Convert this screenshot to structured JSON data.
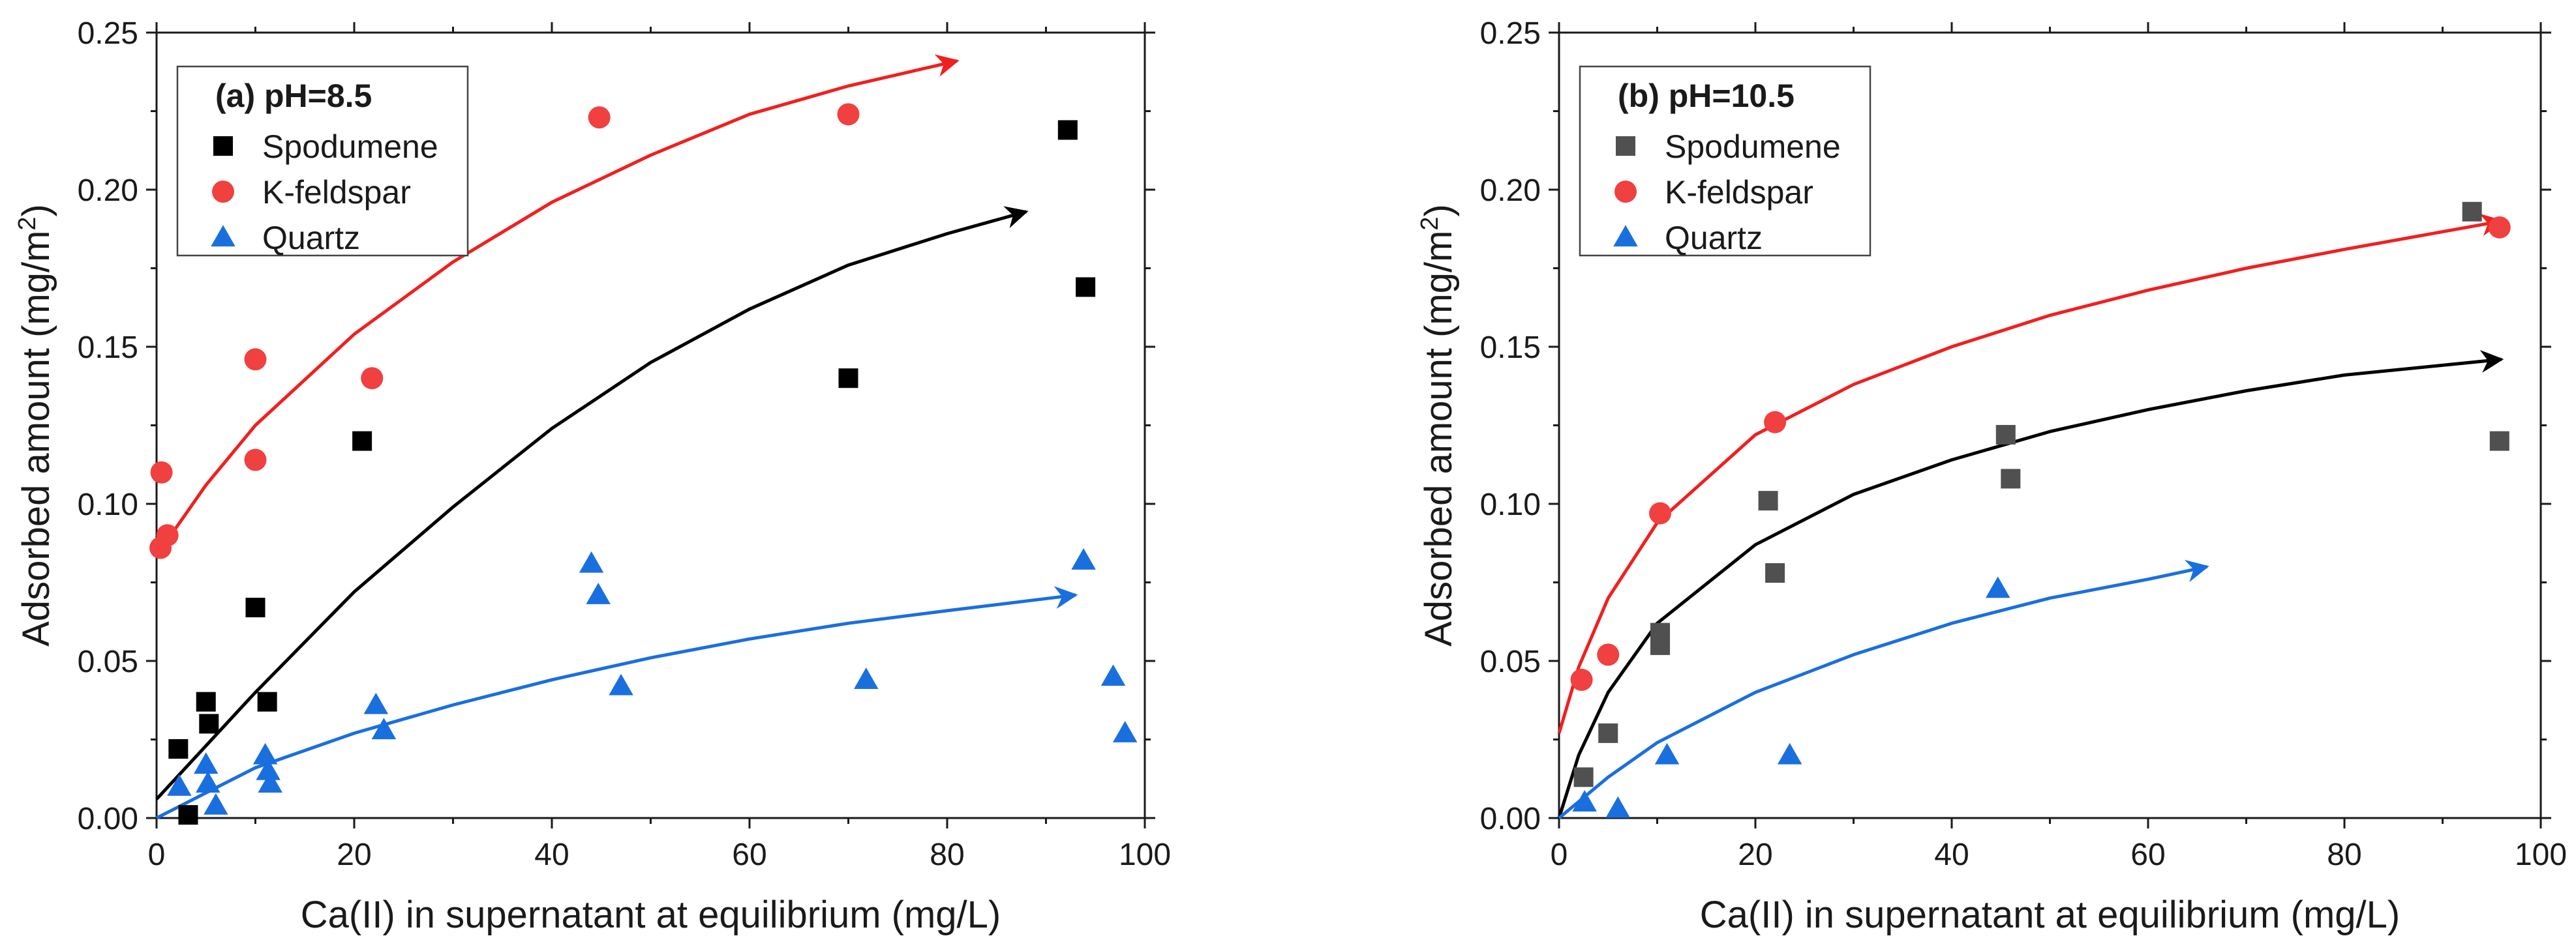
{
  "chart_data": [
    {
      "type": "scatter",
      "panel_title": "(a) pH=8.5",
      "xlabel": "Ca(II) in supernatant at equilibrium (mg/L)",
      "ylabel": "Adsorbed amount (mg/m",
      "ylabel_sup": "2",
      "ylabel_close": ")",
      "xlim": [
        0,
        100
      ],
      "ylim": [
        0,
        0.25
      ],
      "xticks": [
        "0",
        "20",
        "40",
        "60",
        "80",
        "100"
      ],
      "yticks": [
        "0.00",
        "0.05",
        "0.10",
        "0.15",
        "0.20",
        "0.25"
      ],
      "legend_position": "top-left",
      "series": [
        {
          "name": "Spodumene",
          "marker": "square",
          "color": "#000000",
          "points": [
            [
              2.2,
              0.022
            ],
            [
              3.2,
              0.001
            ],
            [
              5.0,
              0.037
            ],
            [
              5.3,
              0.03
            ],
            [
              10.0,
              0.067
            ],
            [
              11.2,
              0.037
            ],
            [
              20.8,
              0.12
            ],
            [
              70.0,
              0.14
            ],
            [
              92.2,
              0.219
            ],
            [
              94.0,
              0.169
            ]
          ],
          "fit": [
            [
              0,
              0.006
            ],
            [
              10,
              0.04
            ],
            [
              20,
              0.072
            ],
            [
              30,
              0.099
            ],
            [
              40,
              0.124
            ],
            [
              50,
              0.145
            ],
            [
              60,
              0.162
            ],
            [
              70,
              0.176
            ],
            [
              80,
              0.186
            ],
            [
              88,
              0.193
            ]
          ]
        },
        {
          "name": "K-feldspar",
          "marker": "circle",
          "color": "#f04040",
          "points": [
            [
              0.4,
              0.086
            ],
            [
              0.5,
              0.11
            ],
            [
              1.1,
              0.09
            ],
            [
              10.0,
              0.146
            ],
            [
              10.0,
              0.114
            ],
            [
              21.8,
              0.14
            ],
            [
              44.8,
              0.223
            ],
            [
              70.0,
              0.224
            ]
          ],
          "fit": [
            [
              1,
              0.088
            ],
            [
              5,
              0.106
            ],
            [
              10,
              0.125
            ],
            [
              20,
              0.154
            ],
            [
              30,
              0.177
            ],
            [
              40,
              0.196
            ],
            [
              50,
              0.211
            ],
            [
              60,
              0.224
            ],
            [
              70,
              0.233
            ],
            [
              81,
              0.241
            ]
          ]
        },
        {
          "name": "Quartz",
          "marker": "triangle",
          "color": "#1a6fdf",
          "points": [
            [
              2.3,
              0.01
            ],
            [
              5.0,
              0.017
            ],
            [
              5.2,
              0.011
            ],
            [
              6.0,
              0.004
            ],
            [
              11.0,
              0.02
            ],
            [
              11.3,
              0.015
            ],
            [
              11.5,
              0.011
            ],
            [
              22.2,
              0.036
            ],
            [
              23.0,
              0.028
            ],
            [
              44.0,
              0.081
            ],
            [
              44.7,
              0.071
            ],
            [
              47.0,
              0.042
            ],
            [
              71.8,
              0.044
            ],
            [
              93.8,
              0.082
            ],
            [
              96.8,
              0.045
            ],
            [
              98.0,
              0.027
            ]
          ],
          "fit": [
            [
              0,
              0.0
            ],
            [
              5,
              0.008
            ],
            [
              10,
              0.016
            ],
            [
              20,
              0.027
            ],
            [
              30,
              0.036
            ],
            [
              40,
              0.044
            ],
            [
              50,
              0.051
            ],
            [
              60,
              0.057
            ],
            [
              70,
              0.062
            ],
            [
              80,
              0.066
            ],
            [
              93,
              0.071
            ]
          ]
        }
      ]
    },
    {
      "type": "scatter",
      "panel_title": "(b) pH=10.5",
      "xlabel": "Ca(II) in supernatant at equilibrium (mg/L)",
      "ylabel": "Adsorbed amount (mg/m",
      "ylabel_sup": "2",
      "ylabel_close": ")",
      "xlim": [
        0,
        100
      ],
      "ylim": [
        0,
        0.25
      ],
      "xticks": [
        "0",
        "20",
        "40",
        "60",
        "80",
        "100"
      ],
      "yticks": [
        "0.00",
        "0.05",
        "0.10",
        "0.15",
        "0.20",
        "0.25"
      ],
      "legend_position": "top-left",
      "series": [
        {
          "name": "Spodumene",
          "marker": "square",
          "color": "#505050",
          "points": [
            [
              2.5,
              0.013
            ],
            [
              5.0,
              0.027
            ],
            [
              10.3,
              0.059
            ],
            [
              10.3,
              0.055
            ],
            [
              21.3,
              0.101
            ],
            [
              22.0,
              0.078
            ],
            [
              45.5,
              0.122
            ],
            [
              46.0,
              0.108
            ],
            [
              93.0,
              0.193
            ],
            [
              95.8,
              0.12
            ]
          ],
          "fit": [
            [
              0,
              0.0
            ],
            [
              2,
              0.02
            ],
            [
              5,
              0.04
            ],
            [
              10,
              0.062
            ],
            [
              20,
              0.087
            ],
            [
              30,
              0.103
            ],
            [
              40,
              0.114
            ],
            [
              50,
              0.123
            ],
            [
              60,
              0.13
            ],
            [
              70,
              0.136
            ],
            [
              80,
              0.141
            ],
            [
              96,
              0.146
            ]
          ]
        },
        {
          "name": "K-feldspar",
          "marker": "circle",
          "color": "#f04040",
          "points": [
            [
              2.3,
              0.044
            ],
            [
              5.0,
              0.052
            ],
            [
              10.3,
              0.097
            ],
            [
              22.0,
              0.126
            ],
            [
              95.8,
              0.188
            ]
          ],
          "fit": [
            [
              0,
              0.027
            ],
            [
              2,
              0.048
            ],
            [
              5,
              0.07
            ],
            [
              10,
              0.094
            ],
            [
              20,
              0.122
            ],
            [
              30,
              0.138
            ],
            [
              40,
              0.15
            ],
            [
              50,
              0.16
            ],
            [
              60,
              0.168
            ],
            [
              70,
              0.175
            ],
            [
              80,
              0.181
            ],
            [
              96,
              0.19
            ]
          ]
        },
        {
          "name": "Quartz",
          "marker": "triangle",
          "color": "#1a6fdf",
          "points": [
            [
              2.6,
              0.005
            ],
            [
              6.0,
              0.003
            ],
            [
              11.0,
              0.02
            ],
            [
              23.5,
              0.02
            ],
            [
              44.7,
              0.073
            ]
          ],
          "fit": [
            [
              0,
              0.0
            ],
            [
              5,
              0.013
            ],
            [
              10,
              0.024
            ],
            [
              20,
              0.04
            ],
            [
              30,
              0.052
            ],
            [
              40,
              0.062
            ],
            [
              50,
              0.07
            ],
            [
              60,
              0.076
            ],
            [
              66,
              0.08
            ]
          ]
        }
      ]
    }
  ]
}
